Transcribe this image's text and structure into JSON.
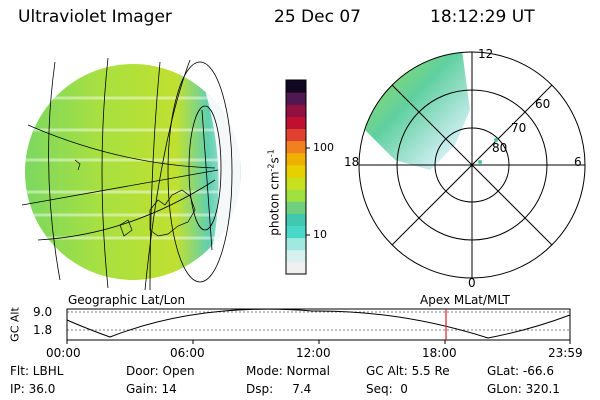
{
  "header": {
    "title": "Ultraviolet Imager",
    "date": "25 Dec 07",
    "time": "18:12:29 UT"
  },
  "colorbar": {
    "label": "photon cm",
    "label_exp1": "-2",
    "label_mid": "s",
    "label_exp2": "-1",
    "ticks": [
      "100",
      "10"
    ],
    "colors": [
      "#f0f0f0",
      "#d8f0f0",
      "#a0e8e0",
      "#48d8c8",
      "#40c8b0",
      "#70d080",
      "#a0e040",
      "#c8e020",
      "#e8d000",
      "#f0b000",
      "#f08020",
      "#e04030",
      "#c01030",
      "#901040",
      "#501850",
      "#100820"
    ]
  },
  "left_panel": {
    "caption": "Geographic Lat/Lon"
  },
  "right_panel": {
    "caption": "Apex MLat/MLT",
    "mlt_labels": {
      "top": "12",
      "bottom": "0",
      "left": "18",
      "right": "6"
    },
    "lat_labels": [
      "60",
      "70",
      "80"
    ]
  },
  "orbit_plot": {
    "ylabel": "GC Alt",
    "yticks": [
      "9.0",
      "1.8"
    ],
    "xticks": [
      "00:00",
      "06:00",
      "12:00",
      "18:00",
      "23:59"
    ],
    "marker_time": "18:12"
  },
  "status": {
    "row1": [
      "Flt: LBHL",
      "Door: Open",
      "Mode: Normal",
      "GC Alt: 5.5 Re",
      "GLat: -66.6"
    ],
    "row2": [
      "IP: 36.0",
      "Gain: 14",
      "Dsp:     7.4",
      "Seq:  0",
      "GLon: 320.1"
    ]
  },
  "colors": {
    "marker": "#e02020",
    "background": "#ffffff",
    "text": "#000000"
  }
}
